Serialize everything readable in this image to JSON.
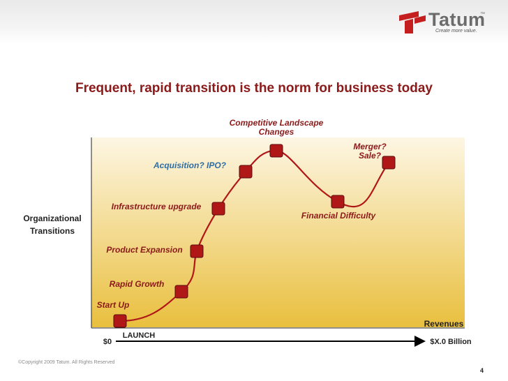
{
  "brand": {
    "name": "Tatum",
    "tm": "™",
    "tagline": "Create more value.",
    "mark_color": "#c41e1e",
    "text_color": "#6b6b6b"
  },
  "title": "Frequent, rapid transition is the norm for business today",
  "colors": {
    "title": "#8b1a1a",
    "curve": "#b01818",
    "milestone_fill": "#b01818",
    "milestone_border": "#5a0c0c",
    "label": "#8b1a1a",
    "label_highlight": "#2e6da4",
    "gradient_top": "#fdf6e3",
    "gradient_bottom": "#e9bf3e"
  },
  "axes": {
    "y_label_line1": "Organizational",
    "y_label_line2": "Transitions",
    "x_label": "Revenues",
    "x_start": "$0",
    "x_end": "$X.0 Billion",
    "launch": "LAUNCH"
  },
  "milestones": [
    {
      "id": "start-up",
      "lines": [
        "Start Up"
      ],
      "highlight": false
    },
    {
      "id": "rapid-growth",
      "lines": [
        "Rapid Growth"
      ],
      "highlight": false
    },
    {
      "id": "product-expansion",
      "lines": [
        "Product Expansion"
      ],
      "highlight": false
    },
    {
      "id": "infrastructure-upgrade",
      "lines": [
        "Infrastructure upgrade"
      ],
      "highlight": false
    },
    {
      "id": "acquisition-ipo",
      "lines": [
        "Acquisition? IPO?"
      ],
      "highlight": true
    },
    {
      "id": "competitive-landscape",
      "lines": [
        "Competitive Landscape",
        "Changes"
      ],
      "highlight": false
    },
    {
      "id": "financial-difficulty",
      "lines": [
        "Financial Difficulty"
      ],
      "highlight": false
    },
    {
      "id": "merger-sale",
      "lines": [
        "Merger?",
        "Sale?"
      ],
      "highlight": false
    }
  ],
  "footer": {
    "copyright": "©Copyright 2009 Tatum. All Rights Reserved",
    "page": "4"
  }
}
